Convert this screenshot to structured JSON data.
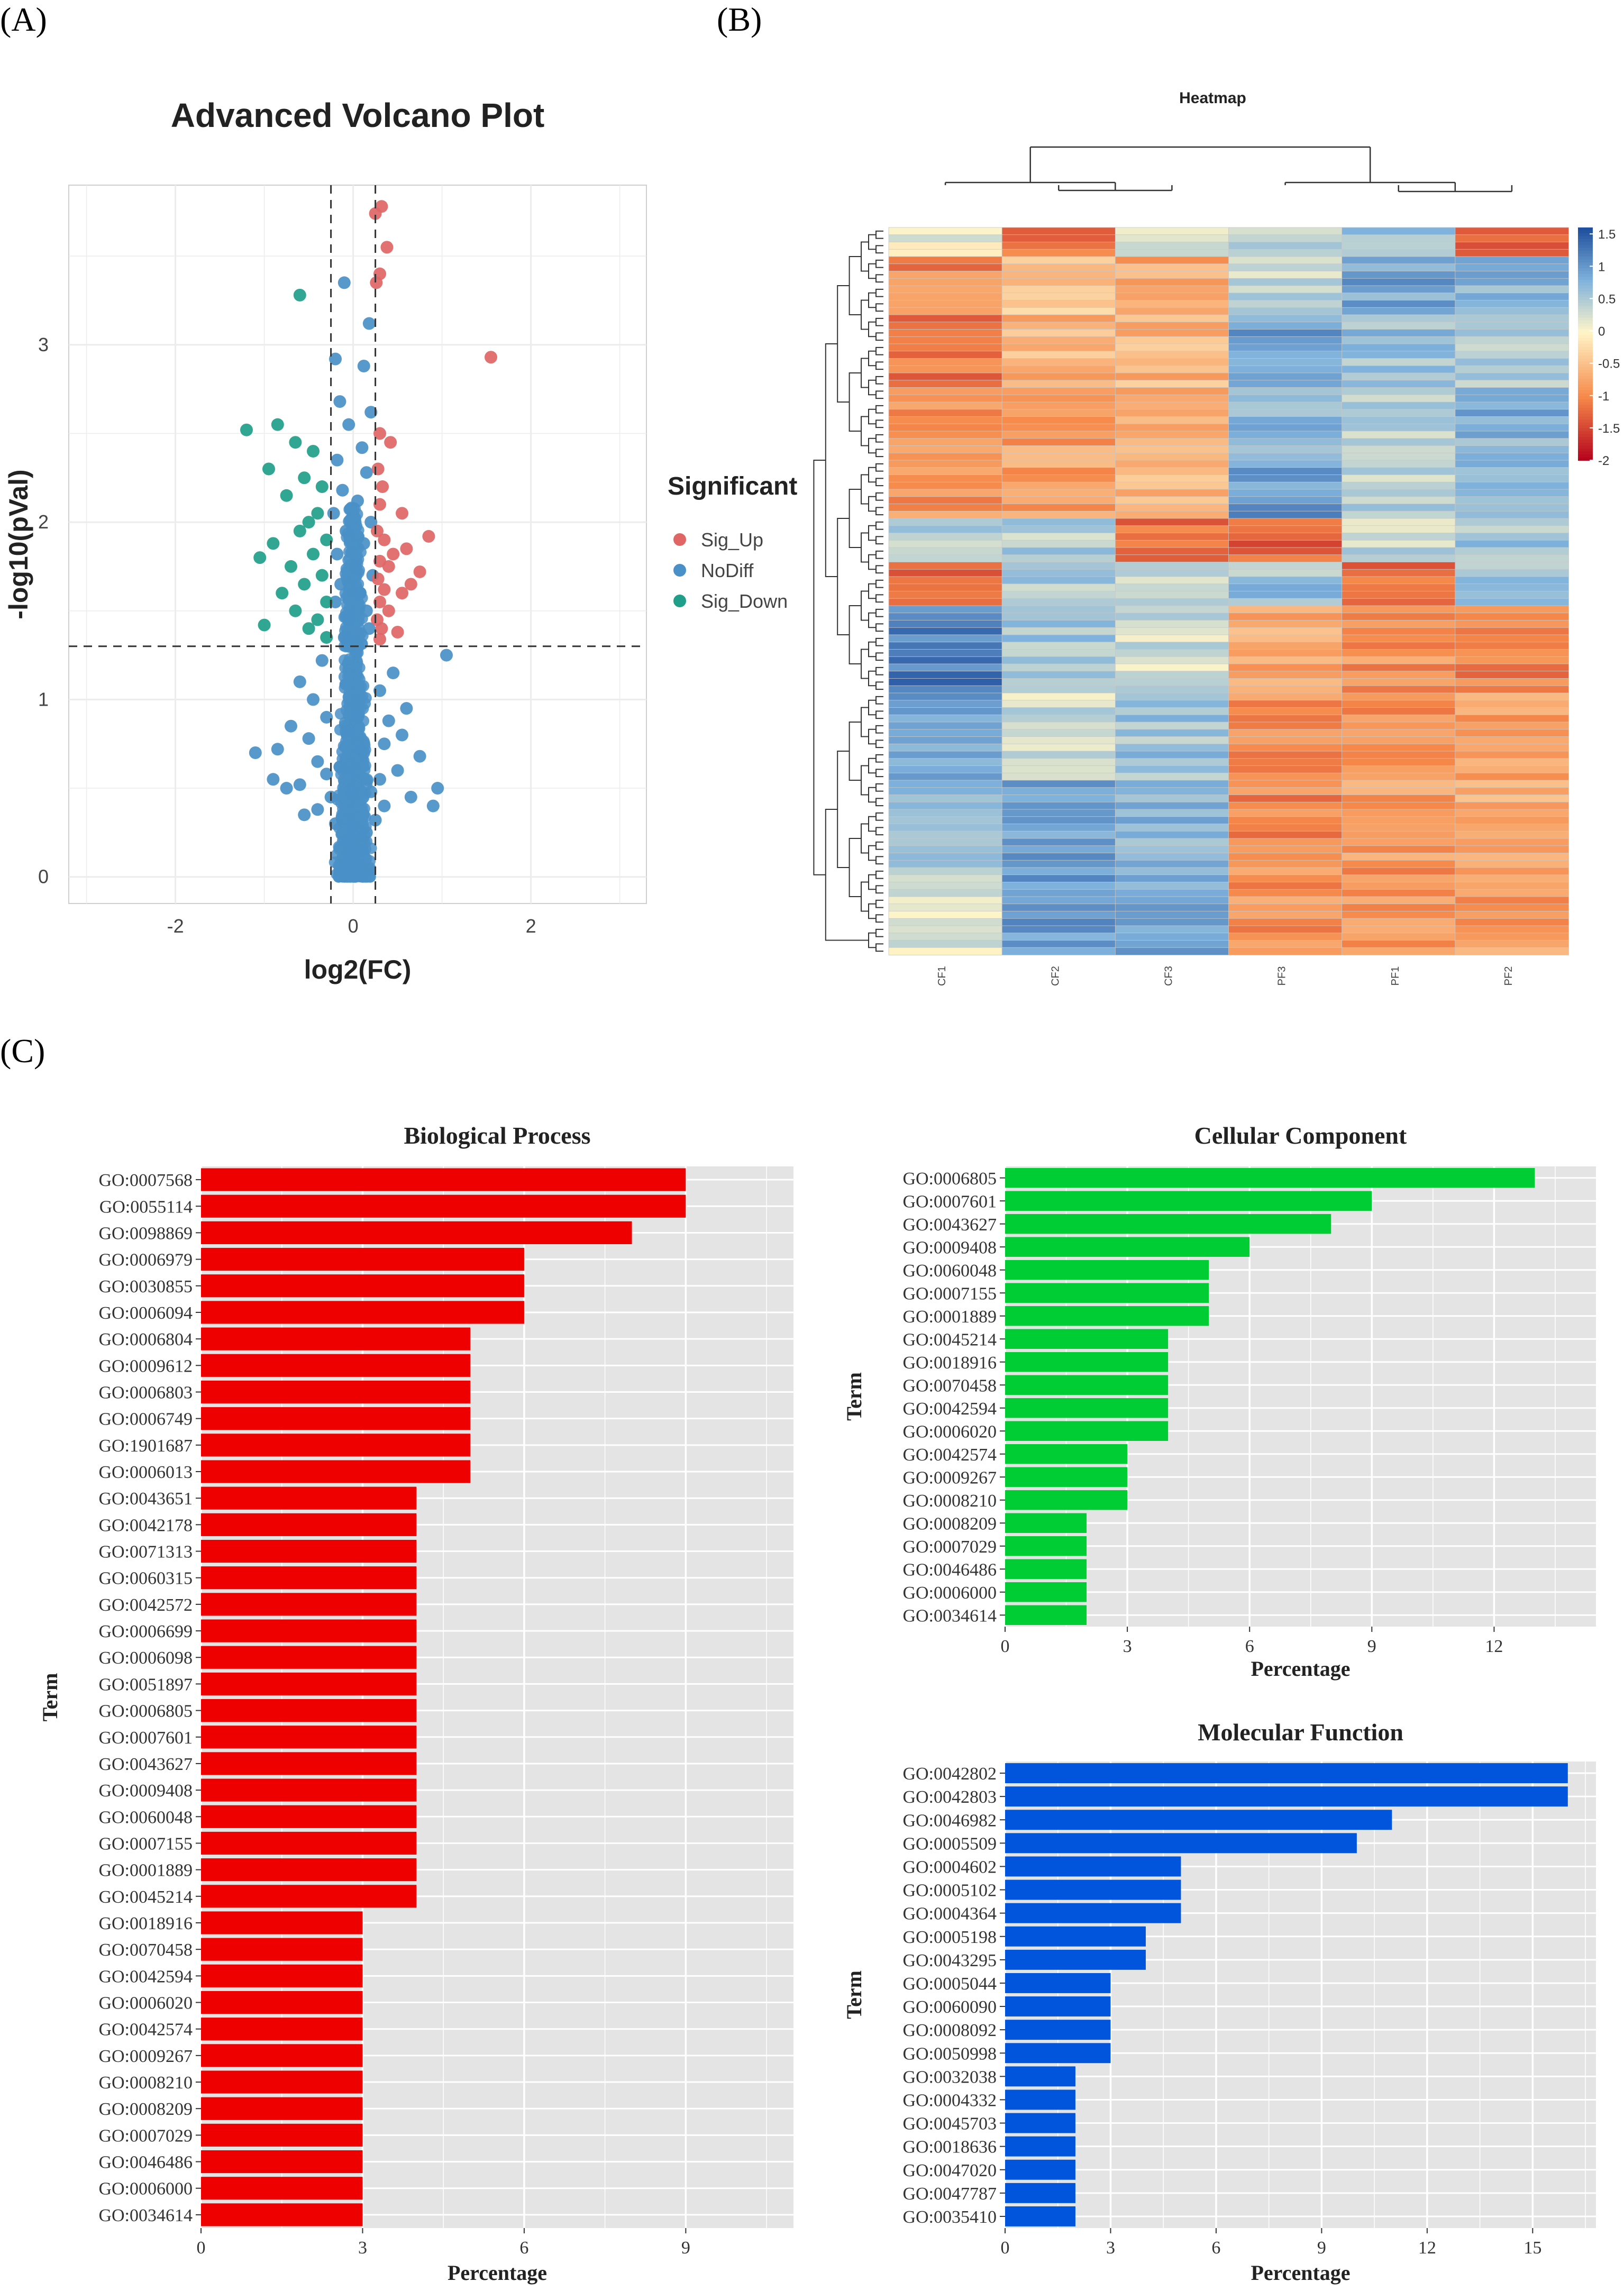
{
  "panel_labels": [
    "(A)",
    "(B)",
    "(C)"
  ],
  "chart_data": [
    {
      "id": "volcano",
      "type": "scatter",
      "title": "Advanced Volcano Plot",
      "xlabel": "log2(FC)",
      "ylabel": "-log10(pVal)",
      "xlim": [
        -3.2,
        3.3
      ],
      "ylim": [
        -0.15,
        3.9
      ],
      "xticks": [
        -2,
        0,
        2
      ],
      "yticks": [
        0,
        1,
        2,
        3
      ],
      "thresholds": {
        "x": [
          -0.25,
          0.25
        ],
        "y": 1.3
      },
      "legend": {
        "title": "Significant",
        "entries": [
          "Sig_Up",
          "NoDiff",
          "Sig_Down"
        ]
      },
      "colors": {
        "Sig_Up": "#e06666",
        "NoDiff": "#4a90c8",
        "Sig_Down": "#1f9e89"
      },
      "series": [
        {
          "name": "Sig_Up",
          "points": [
            [
              0.32,
              3.78
            ],
            [
              0.25,
              3.74
            ],
            [
              0.38,
              3.55
            ],
            [
              0.3,
              3.4
            ],
            [
              0.26,
              3.35
            ],
            [
              1.55,
              2.93
            ],
            [
              0.3,
              2.5
            ],
            [
              0.42,
              2.45
            ],
            [
              0.28,
              2.3
            ],
            [
              0.33,
              2.2
            ],
            [
              0.3,
              2.1
            ],
            [
              0.55,
              2.05
            ],
            [
              0.27,
              1.95
            ],
            [
              0.35,
              1.9
            ],
            [
              0.6,
              1.85
            ],
            [
              0.45,
              1.82
            ],
            [
              0.3,
              1.78
            ],
            [
              0.4,
              1.75
            ],
            [
              0.75,
              1.72
            ],
            [
              0.28,
              1.68
            ],
            [
              0.35,
              1.62
            ],
            [
              0.55,
              1.6
            ],
            [
              0.3,
              1.55
            ],
            [
              0.4,
              1.5
            ],
            [
              0.27,
              1.45
            ],
            [
              0.32,
              1.4
            ],
            [
              0.5,
              1.38
            ],
            [
              0.3,
              1.34
            ],
            [
              0.85,
              1.92
            ],
            [
              0.65,
              1.65
            ]
          ]
        },
        {
          "name": "Sig_Down",
          "points": [
            [
              -0.6,
              3.28
            ],
            [
              -1.2,
              2.52
            ],
            [
              -0.85,
              2.55
            ],
            [
              -0.65,
              2.45
            ],
            [
              -0.45,
              2.4
            ],
            [
              -0.95,
              2.3
            ],
            [
              -0.55,
              2.25
            ],
            [
              -0.35,
              2.2
            ],
            [
              -0.75,
              2.15
            ],
            [
              -0.4,
              2.05
            ],
            [
              -0.5,
              2.0
            ],
            [
              -0.6,
              1.95
            ],
            [
              -0.3,
              1.9
            ],
            [
              -0.9,
              1.88
            ],
            [
              -0.45,
              1.82
            ],
            [
              -1.05,
              1.8
            ],
            [
              -0.7,
              1.75
            ],
            [
              -0.35,
              1.7
            ],
            [
              -0.55,
              1.65
            ],
            [
              -0.8,
              1.6
            ],
            [
              -0.3,
              1.55
            ],
            [
              -0.65,
              1.5
            ],
            [
              -0.4,
              1.45
            ],
            [
              -1.0,
              1.42
            ],
            [
              -0.5,
              1.4
            ],
            [
              -0.3,
              1.35
            ]
          ]
        },
        {
          "name": "NoDiff",
          "points": [
            [
              -0.1,
              3.35
            ],
            [
              0.18,
              3.12
            ],
            [
              -0.2,
              2.92
            ],
            [
              0.12,
              2.88
            ],
            [
              -0.15,
              2.68
            ],
            [
              0.2,
              2.62
            ],
            [
              -0.05,
              2.55
            ],
            [
              0.1,
              2.42
            ],
            [
              -0.18,
              2.35
            ],
            [
              0.15,
              2.28
            ],
            [
              -0.12,
              2.18
            ],
            [
              0.05,
              2.12
            ],
            [
              -0.22,
              2.05
            ],
            [
              0.2,
              2.0
            ],
            [
              -0.08,
              1.95
            ],
            [
              0.12,
              1.88
            ],
            [
              -0.18,
              1.82
            ],
            [
              0.02,
              1.75
            ],
            [
              0.22,
              1.7
            ],
            [
              -0.14,
              1.65
            ],
            [
              0.08,
              1.6
            ],
            [
              -0.2,
              1.55
            ],
            [
              0.15,
              1.5
            ],
            [
              -0.05,
              1.45
            ],
            [
              0.18,
              1.4
            ],
            [
              -0.1,
              1.35
            ],
            [
              1.05,
              1.25
            ],
            [
              -0.35,
              1.22
            ],
            [
              0.45,
              1.15
            ],
            [
              -0.6,
              1.1
            ],
            [
              0.3,
              1.05
            ],
            [
              -0.45,
              1.0
            ],
            [
              0.6,
              0.95
            ],
            [
              -0.3,
              0.9
            ],
            [
              0.4,
              0.88
            ],
            [
              -0.7,
              0.85
            ],
            [
              0.55,
              0.8
            ],
            [
              -0.5,
              0.78
            ],
            [
              0.35,
              0.75
            ],
            [
              -0.85,
              0.72
            ],
            [
              0.75,
              0.68
            ],
            [
              -1.1,
              0.7
            ],
            [
              -0.4,
              0.65
            ],
            [
              0.5,
              0.6
            ],
            [
              -0.3,
              0.58
            ],
            [
              0.3,
              0.55
            ],
            [
              -0.6,
              0.52
            ],
            [
              0.9,
              0.4
            ],
            [
              -0.55,
              0.35
            ],
            [
              0.25,
              0.32
            ],
            [
              -0.2,
              0.3
            ],
            [
              0.15,
              0.25
            ],
            [
              -0.1,
              0.2
            ],
            [
              0.1,
              0.15
            ],
            [
              -0.05,
              0.1
            ],
            [
              0.02,
              0.05
            ],
            [
              0.0,
              0.02
            ],
            [
              -0.25,
              0.45
            ],
            [
              0.2,
              0.48
            ],
            [
              -0.15,
              0.62
            ],
            [
              0.12,
              0.7
            ],
            [
              -0.08,
              0.82
            ],
            [
              0.05,
              0.9
            ],
            [
              0.95,
              0.5
            ],
            [
              -0.75,
              0.5
            ],
            [
              -0.9,
              0.55
            ],
            [
              0.65,
              0.45
            ],
            [
              -0.4,
              0.38
            ],
            [
              0.35,
              0.4
            ]
          ]
        }
      ],
      "nodiff_cloud": {
        "description": "dense cluster near x=0",
        "center_x": 0.0,
        "spread_x": 0.22,
        "y_range": [
          0,
          2.1
        ]
      }
    },
    {
      "id": "heatmap",
      "type": "heatmap",
      "title": "Heatmap",
      "columns": [
        "CF1",
        "CF2",
        "CF3",
        "PF3",
        "PF1",
        "PF2"
      ],
      "colorbar": {
        "ticks": [
          1.5,
          1,
          0.5,
          0,
          -0.5,
          -1,
          -1.5,
          -2
        ],
        "range": [
          -2,
          1.6
        ],
        "low": "#b3001b",
        "mid": "#fff5c8",
        "high": "#1f4f9e"
      },
      "row_count": 100,
      "row_blocks": [
        {
          "rows": 2,
          "values": [
            0.3,
            -1.3,
            0.2,
            0.5,
            0.6,
            -1.3
          ]
        },
        {
          "rows": 2,
          "values": [
            0.1,
            -1.1,
            0.3,
            0.4,
            0.5,
            -1.2
          ]
        },
        {
          "rows": 8,
          "values": [
            -1.0,
            -0.5,
            -0.7,
            0.4,
            0.9,
            0.8
          ]
        },
        {
          "rows": 10,
          "values": [
            -1.1,
            -0.6,
            -0.6,
            0.9,
            0.6,
            0.5
          ]
        },
        {
          "rows": 10,
          "values": [
            -0.9,
            -0.8,
            -0.7,
            0.7,
            0.5,
            0.8
          ]
        },
        {
          "rows": 8,
          "values": [
            -0.9,
            -0.8,
            -0.6,
            1.0,
            0.4,
            0.6
          ]
        },
        {
          "rows": 6,
          "values": [
            0.4,
            0.5,
            -1.2,
            -1.3,
            0.4,
            0.6
          ]
        },
        {
          "rows": 6,
          "values": [
            -1.2,
            0.5,
            0.4,
            0.6,
            -1.2,
            0.6
          ]
        },
        {
          "rows": 12,
          "values": [
            1.2,
            0.6,
            0.3,
            -0.7,
            -0.9,
            -1.0
          ]
        },
        {
          "rows": 12,
          "values": [
            0.9,
            0.3,
            0.6,
            -0.9,
            -1.0,
            -0.8
          ]
        },
        {
          "rows": 12,
          "values": [
            0.7,
            0.9,
            0.7,
            -1.0,
            -0.8,
            -0.7
          ]
        },
        {
          "rows": 12,
          "values": [
            0.2,
            1.0,
            0.8,
            -0.9,
            -0.9,
            -0.8
          ]
        }
      ]
    },
    {
      "id": "bp",
      "type": "bar",
      "orientation": "horizontal",
      "title": "Biological Process",
      "xlabel": "Percentage",
      "ylabel": "Term",
      "xlim": [
        0,
        11
      ],
      "xticks": [
        0,
        3,
        6,
        9
      ],
      "color": "#ee0000",
      "categories": [
        "GO:0007568",
        "GO:0055114",
        "GO:0098869",
        "GO:0006979",
        "GO:0030855",
        "GO:0006094",
        "GO:0006804",
        "GO:0009612",
        "GO:0006803",
        "GO:0006749",
        "GO:1901687",
        "GO:0006013",
        "GO:0043651",
        "GO:0042178",
        "GO:0071313",
        "GO:0060315",
        "GO:0042572",
        "GO:0006699",
        "GO:0006098",
        "GO:0051897",
        "GO:0006805",
        "GO:0007601",
        "GO:0043627",
        "GO:0009408",
        "GO:0060048",
        "GO:0007155",
        "GO:0001889",
        "GO:0045214",
        "GO:0018916",
        "GO:0070458",
        "GO:0042594",
        "GO:0006020",
        "GO:0042574",
        "GO:0009267",
        "GO:0008210",
        "GO:0008209",
        "GO:0007029",
        "GO:0046486",
        "GO:0006000",
        "GO:0034614"
      ],
      "values": [
        9,
        9,
        8,
        6,
        6,
        6,
        5,
        5,
        5,
        5,
        5,
        5,
        4,
        4,
        4,
        4,
        4,
        4,
        4,
        4,
        4,
        4,
        4,
        4,
        4,
        4,
        4,
        4,
        3,
        3,
        3,
        3,
        3,
        3,
        3,
        3,
        3,
        3,
        3,
        3
      ]
    },
    {
      "id": "cc",
      "type": "bar",
      "orientation": "horizontal",
      "title": "Cellular Component",
      "xlabel": "Percentage",
      "ylabel": "Term",
      "xlim": [
        0,
        14.5
      ],
      "xticks": [
        0,
        3,
        6,
        9,
        12
      ],
      "color": "#00cc33",
      "categories": [
        "GO:0006805",
        "GO:0007601",
        "GO:0043627",
        "GO:0009408",
        "GO:0060048",
        "GO:0007155",
        "GO:0001889",
        "GO:0045214",
        "GO:0018916",
        "GO:0070458",
        "GO:0042594",
        "GO:0006020",
        "GO:0042574",
        "GO:0009267",
        "GO:0008210",
        "GO:0008209",
        "GO:0007029",
        "GO:0046486",
        "GO:0006000",
        "GO:0034614"
      ],
      "values": [
        13,
        9,
        8,
        6,
        5,
        5,
        5,
        4,
        4,
        4,
        4,
        4,
        3,
        3,
        3,
        2,
        2,
        2,
        2,
        2
      ]
    },
    {
      "id": "mf",
      "type": "bar",
      "orientation": "horizontal",
      "title": "Molecular Function",
      "xlabel": "Percentage",
      "ylabel": "Term",
      "xlim": [
        0,
        16.8
      ],
      "xticks": [
        0,
        3,
        6,
        9,
        12,
        15
      ],
      "color": "#0055dd",
      "categories": [
        "GO:0042802",
        "GO:0042803",
        "GO:0046982",
        "GO:0005509",
        "GO:0004602",
        "GO:0005102",
        "GO:0004364",
        "GO:0005198",
        "GO:0043295",
        "GO:0005044",
        "GO:0060090",
        "GO:0008092",
        "GO:0050998",
        "GO:0032038",
        "GO:0004332",
        "GO:0045703",
        "GO:0018636",
        "GO:0047020",
        "GO:0047787",
        "GO:0035410"
      ],
      "values": [
        16,
        16,
        11,
        10,
        5,
        5,
        5,
        4,
        4,
        3,
        3,
        3,
        3,
        2,
        2,
        2,
        2,
        2,
        2,
        2
      ]
    }
  ]
}
